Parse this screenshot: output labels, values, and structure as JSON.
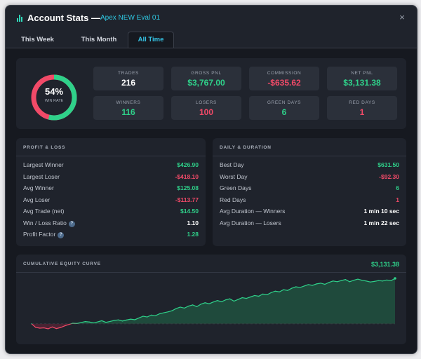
{
  "window": {
    "title": "Account Stats —",
    "account": "Apex NEW Eval 01",
    "close_glyph": "×"
  },
  "tabs": [
    {
      "label": "This Week",
      "active": false
    },
    {
      "label": "This Month",
      "active": false
    },
    {
      "label": "All Time",
      "active": true
    }
  ],
  "summary": {
    "win_rate": "54%",
    "win_rate_fraction": 0.54,
    "win_rate_label": "WIN RATE",
    "stats": [
      {
        "label": "TRADES",
        "value": "216",
        "tone": "white"
      },
      {
        "label": "GROSS PNL",
        "value": "$3,767.00",
        "tone": "positive"
      },
      {
        "label": "COMMISSION",
        "value": "-$635.62",
        "tone": "negative"
      },
      {
        "label": "NET PNL",
        "value": "$3,131.38",
        "tone": "positive"
      },
      {
        "label": "WINNERS",
        "value": "116",
        "tone": "positive"
      },
      {
        "label": "LOSERS",
        "value": "100",
        "tone": "negative"
      },
      {
        "label": "GREEN DAYS",
        "value": "6",
        "tone": "positive"
      },
      {
        "label": "RED DAYS",
        "value": "1",
        "tone": "negative"
      }
    ]
  },
  "profit_loss": {
    "title": "PROFIT & LOSS",
    "rows": [
      {
        "label": "Largest Winner",
        "value": "$426.90",
        "tone": "positive"
      },
      {
        "label": "Largest Loser",
        "value": "-$418.10",
        "tone": "negative"
      },
      {
        "label": "Avg Winner",
        "value": "$125.08",
        "tone": "positive"
      },
      {
        "label": "Avg Loser",
        "value": "-$113.77",
        "tone": "negative"
      },
      {
        "label": "Avg Trade (net)",
        "value": "$14.50",
        "tone": "positive"
      },
      {
        "label": "Win / Loss Ratio",
        "value": "1.10",
        "tone": "white",
        "info": "?"
      },
      {
        "label": "Profit Factor",
        "value": "1.28",
        "tone": "positive",
        "info": "?"
      }
    ]
  },
  "daily_duration": {
    "title": "DAILY & DURATION",
    "rows": [
      {
        "label": "Best Day",
        "value": "$631.50",
        "tone": "positive"
      },
      {
        "label": "Worst Day",
        "value": "-$92.30",
        "tone": "negative"
      },
      {
        "label": "Green Days",
        "value": "6",
        "tone": "positive"
      },
      {
        "label": "Red Days",
        "value": "1",
        "tone": "negative"
      },
      {
        "label": "Avg Duration — Winners",
        "value": "1 min 10 sec",
        "tone": "white"
      },
      {
        "label": "Avg Duration — Losers",
        "value": "1 min 22 sec",
        "tone": "white"
      }
    ]
  },
  "equity": {
    "title": "CUMULATIVE EQUITY CURVE",
    "final_value": "$3,131.38"
  },
  "colors": {
    "positive": "#2fd18a",
    "negative": "#f14a68",
    "accent": "#36c4e6",
    "background": "#161920",
    "panel": "#1f232c"
  },
  "chart_data": {
    "type": "area",
    "title": "CUMULATIVE EQUITY CURVE",
    "xlabel": "",
    "ylabel": "",
    "grid": false,
    "series": [
      {
        "values": [
          0,
          -250,
          -300,
          -280,
          -350,
          -220,
          -330,
          -260,
          -150,
          -50,
          40,
          20,
          90,
          150,
          120,
          60,
          130,
          210,
          100,
          160,
          230,
          270,
          190,
          260,
          320,
          280,
          400,
          520,
          470,
          600,
          560,
          690,
          760,
          820,
          900,
          1050,
          1150,
          1080,
          1220,
          1300,
          1180,
          1350,
          1450,
          1380,
          1500,
          1600,
          1520,
          1650,
          1720,
          1560,
          1680,
          1800,
          1750,
          1850,
          1950,
          1900,
          2050,
          2000,
          2150,
          2250,
          2200,
          2350,
          2300,
          2450,
          2550,
          2500,
          2600,
          2700,
          2650,
          2750,
          2800,
          2720,
          2850,
          2950,
          2900,
          2980,
          3050,
          2900,
          3000,
          3080,
          3000,
          2950,
          2880,
          2920,
          2980,
          2950,
          3020,
          2970,
          3131.38
        ]
      }
    ]
  }
}
